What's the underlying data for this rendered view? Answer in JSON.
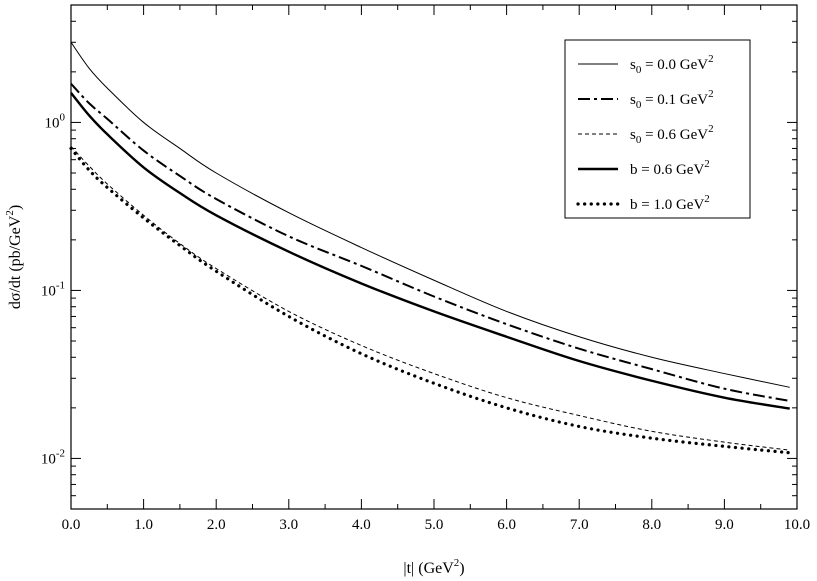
{
  "chart_data": {
    "type": "line",
    "xlabel": "|t| (GeV",
    "xlabel_sup": "2",
    "xlabel_end": ")",
    "ylabel": "dσ/dt (pb/GeV",
    "ylabel_sup": "2",
    "ylabel_end": ")",
    "xlim": [
      0,
      10
    ],
    "ylim": [
      0.005,
      5
    ],
    "yscale": "log",
    "grid": false,
    "legend_position": "top-right",
    "x_ticks": [
      {
        "value": 0,
        "label": "0.0"
      },
      {
        "value": 1,
        "label": "1.0"
      },
      {
        "value": 2,
        "label": "2.0"
      },
      {
        "value": 3,
        "label": "3.0"
      },
      {
        "value": 4,
        "label": "4.0"
      },
      {
        "value": 5,
        "label": "5.0"
      },
      {
        "value": 6,
        "label": "6.0"
      },
      {
        "value": 7,
        "label": "7.0"
      },
      {
        "value": 8,
        "label": "8.0"
      },
      {
        "value": 9,
        "label": "9.0"
      },
      {
        "value": 10,
        "label": "10.0"
      }
    ],
    "y_ticks": [
      {
        "value": 1,
        "base": "10",
        "exp": "0"
      },
      {
        "value": 0.1,
        "base": "10",
        "exp": "-1"
      },
      {
        "value": 0.01,
        "base": "10",
        "exp": "-2"
      }
    ],
    "x": [
      0,
      0.25,
      0.5,
      1,
      1.5,
      2,
      3,
      4,
      5,
      6,
      7,
      8,
      9,
      9.9
    ],
    "series": [
      {
        "name": "s_0 = 0.0 GeV^2",
        "label_main": "s",
        "label_sub": "0",
        "label_mid": " = 0.0 GeV",
        "label_sup": "2",
        "style": "thin-solid",
        "values": [
          3.0,
          2.1,
          1.6,
          1.0,
          0.7,
          0.5,
          0.29,
          0.18,
          0.115,
          0.075,
          0.053,
          0.04,
          0.032,
          0.0265
        ]
      },
      {
        "name": "s_0 = 0.1 GeV^2",
        "label_main": "s",
        "label_sub": "0",
        "label_mid": " = 0.1 GeV",
        "label_sup": "2",
        "style": "dash-dot",
        "values": [
          1.7,
          1.3,
          1.05,
          0.68,
          0.48,
          0.35,
          0.21,
          0.14,
          0.092,
          0.063,
          0.045,
          0.034,
          0.026,
          0.022
        ]
      },
      {
        "name": "s_0 = 0.6 GeV^2",
        "label_main": "s",
        "label_sub": "0",
        "label_mid": " = 0.6 GeV",
        "label_sup": "2",
        "style": "dashed",
        "values": [
          0.72,
          0.55,
          0.43,
          0.28,
          0.19,
          0.135,
          0.075,
          0.047,
          0.032,
          0.023,
          0.018,
          0.0145,
          0.0125,
          0.0112
        ]
      },
      {
        "name": "b = 0.6 GeV^2",
        "label_main": "b",
        "label_sub": "",
        "label_mid": " = 0.6 GeV",
        "label_sup": "2",
        "style": "thick-solid",
        "values": [
          1.5,
          1.1,
          0.85,
          0.54,
          0.38,
          0.28,
          0.17,
          0.11,
          0.075,
          0.053,
          0.038,
          0.029,
          0.023,
          0.0198
        ]
      },
      {
        "name": "b = 1.0 GeV^2",
        "label_main": "b",
        "label_sub": "",
        "label_mid": " = 1.0 GeV",
        "label_sup": "2",
        "style": "dotted",
        "values": [
          0.7,
          0.52,
          0.41,
          0.27,
          0.185,
          0.13,
          0.07,
          0.042,
          0.028,
          0.02,
          0.0155,
          0.0132,
          0.0118,
          0.0108
        ]
      }
    ]
  }
}
